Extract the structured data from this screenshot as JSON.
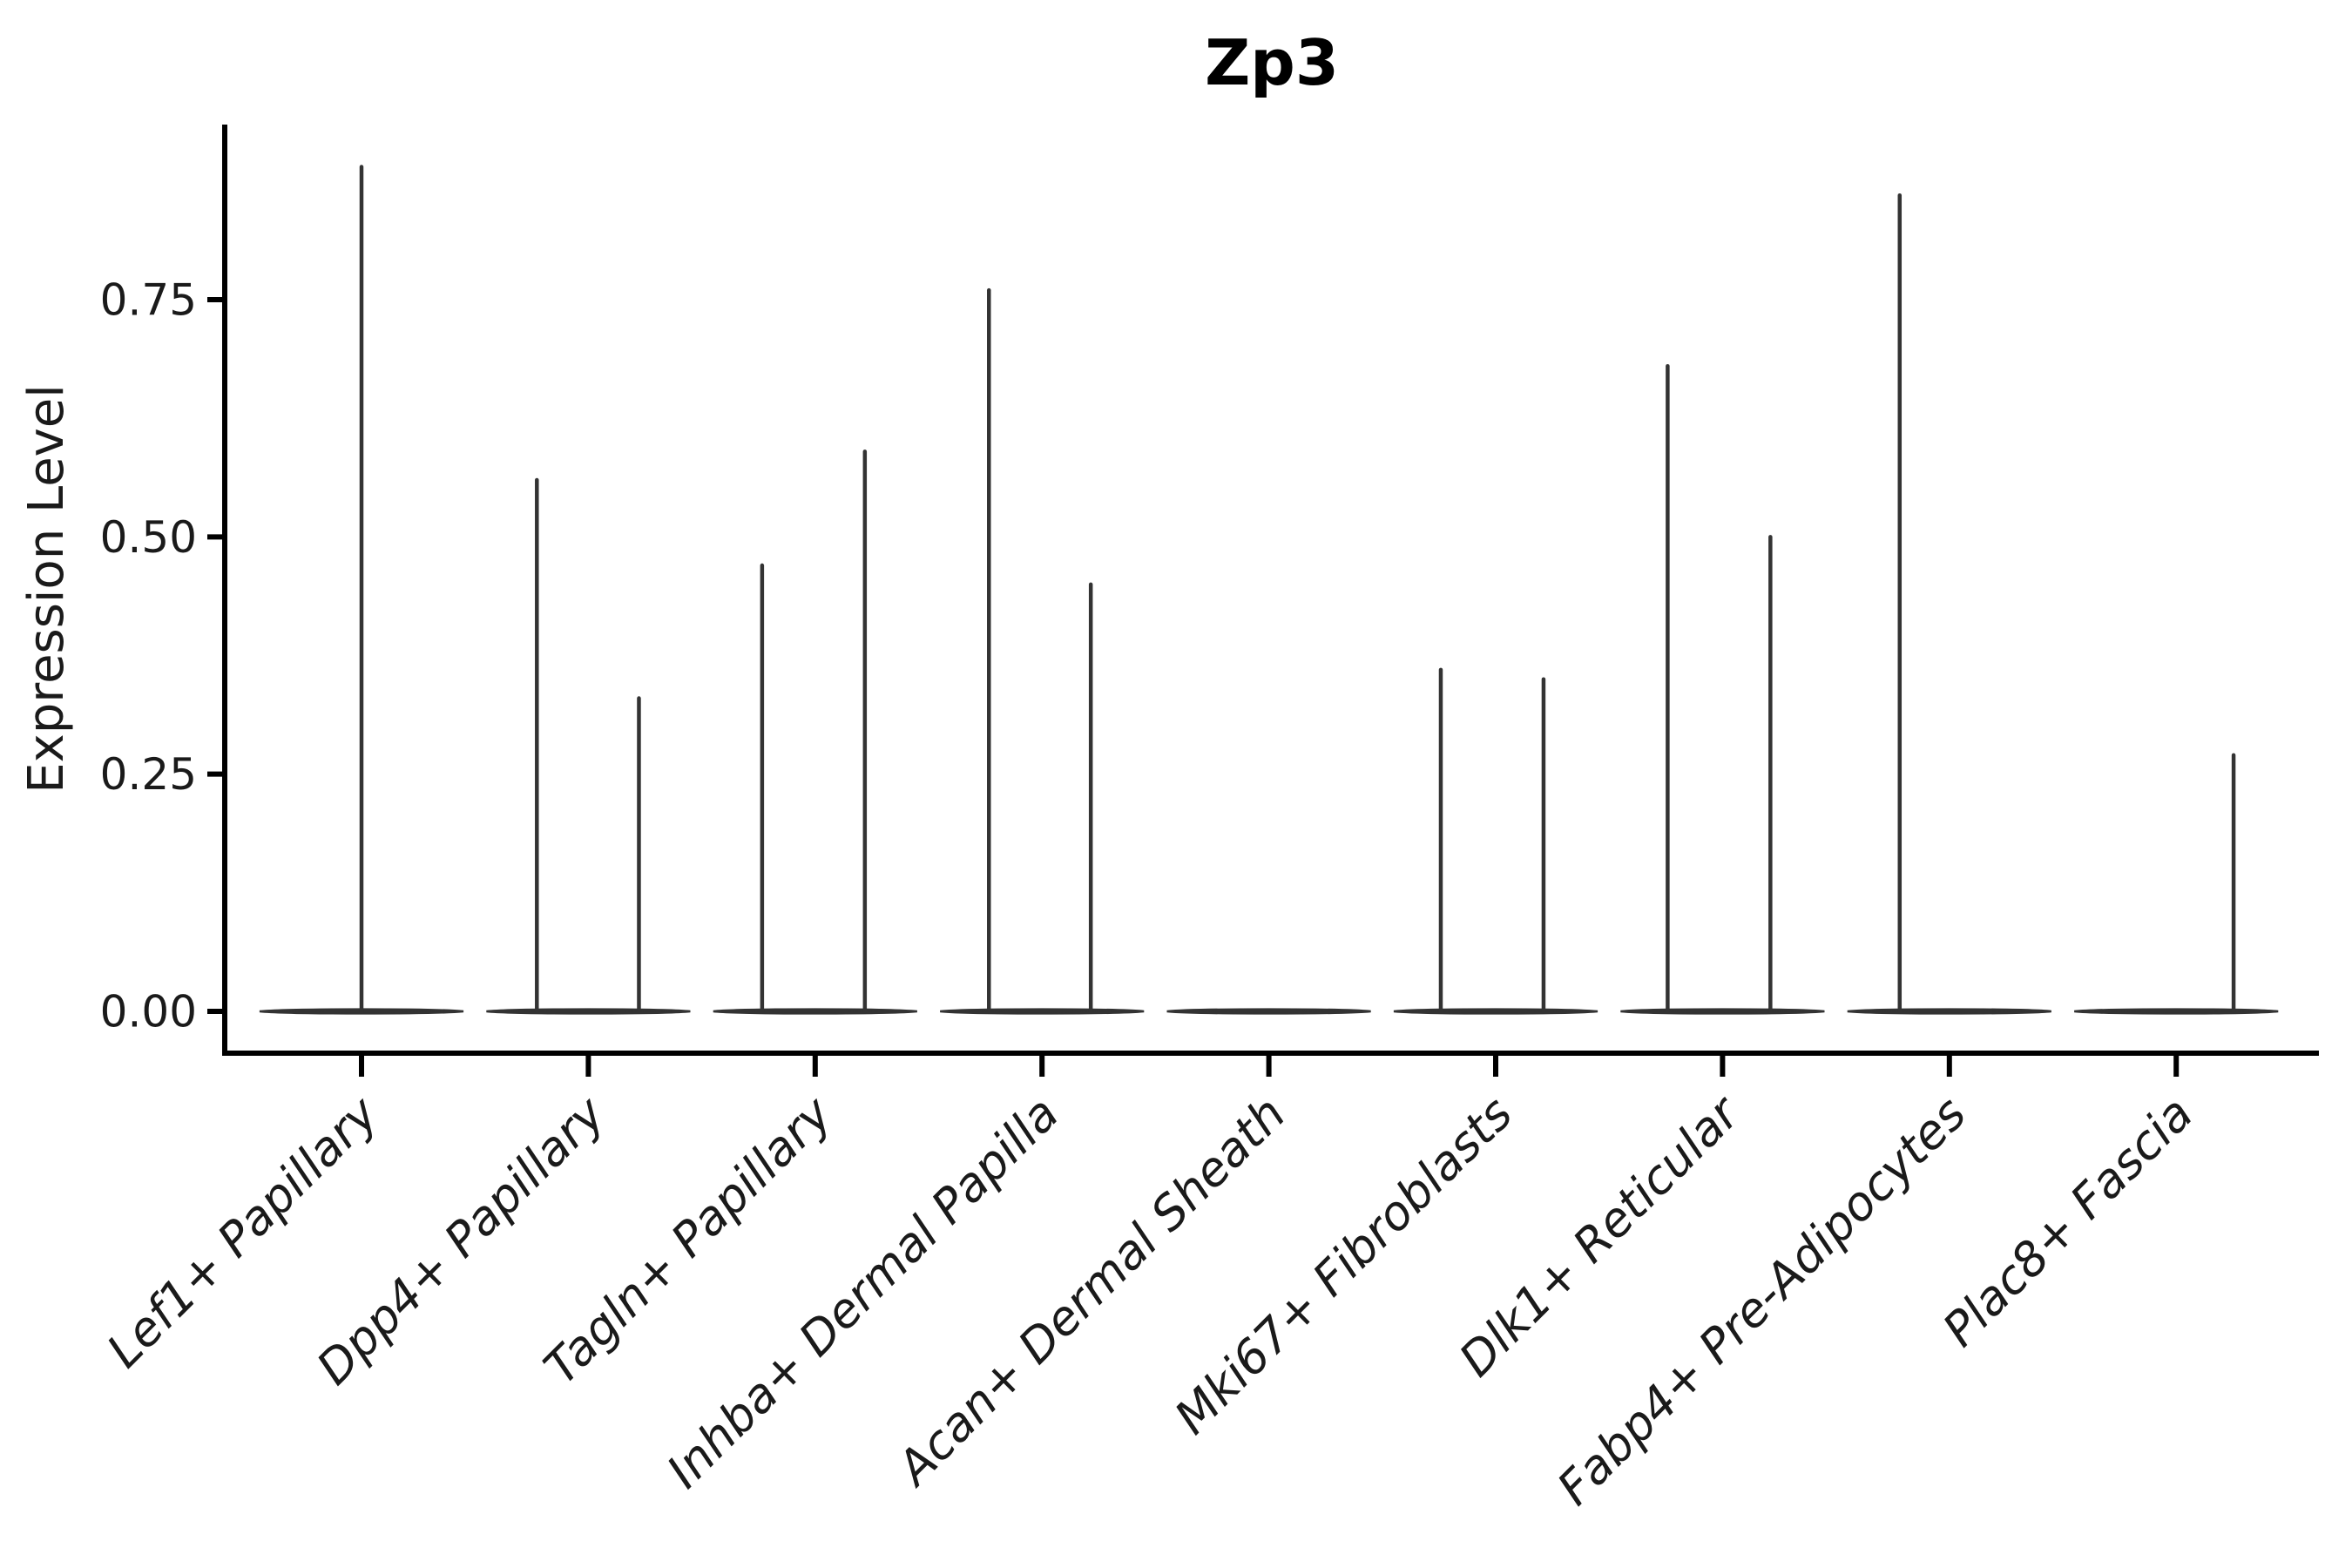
{
  "title": "Zp3",
  "ylabel": "Expression Level",
  "chart_data": {
    "type": "violin",
    "title": "Zp3",
    "xlabel": "",
    "ylabel": "Expression Level",
    "ytick_labels": [
      "0.00",
      "0.25",
      "0.50",
      "0.75"
    ],
    "ytick_values": [
      0,
      0.25,
      0.5,
      0.75
    ],
    "ylim": [
      -0.044,
      0.934
    ],
    "grid": false,
    "legend": false,
    "baseline_value": 0,
    "violin_color": "#333333",
    "axis_color": "#000000",
    "categories": [
      "Lef1+ Papillary",
      "Dpp4+ Papillary",
      "Tagln+ Papillary",
      "Inhba+ Dermal Papilla",
      "Acan+ Dermal Sheath",
      "Mki67+ Fibroblasts",
      "Dlk1+ Reticular",
      "Fabp4+ Pre-Adipocytes",
      "Plac8+ Fascia"
    ],
    "series": [
      {
        "category": "Lef1+ Papillary",
        "spikes": [
          {
            "value": 0.89,
            "offset": 0.0
          }
        ]
      },
      {
        "category": "Dpp4+ Papillary",
        "spikes": [
          {
            "value": 0.56,
            "offset": -0.227
          },
          {
            "value": 0.33,
            "offset": 0.223
          }
        ]
      },
      {
        "category": "Tagln+ Papillary",
        "spikes": [
          {
            "value": 0.47,
            "offset": -0.234
          },
          {
            "value": 0.59,
            "offset": 0.219
          }
        ]
      },
      {
        "category": "Inhba+ Dermal Papilla",
        "spikes": [
          {
            "value": 0.76,
            "offset": -0.234
          },
          {
            "value": 0.45,
            "offset": 0.215
          }
        ]
      },
      {
        "category": "Acan+ Dermal Sheath",
        "spikes": []
      },
      {
        "category": "Mki67+ Fibroblasts",
        "spikes": [
          {
            "value": 0.36,
            "offset": -0.242
          },
          {
            "value": 0.35,
            "offset": 0.211
          }
        ]
      },
      {
        "category": "Dlk1+ Reticular",
        "spikes": [
          {
            "value": 0.68,
            "offset": -0.242
          },
          {
            "value": 0.5,
            "offset": 0.211
          }
        ]
      },
      {
        "category": "Fabp4+ Pre-Adipocytes",
        "spikes": [
          {
            "value": 0.86,
            "offset": -0.219
          }
        ]
      },
      {
        "category": "Plac8+ Fascia",
        "spikes": [
          {
            "value": 0.27,
            "offset": 0.253
          }
        ]
      }
    ]
  }
}
